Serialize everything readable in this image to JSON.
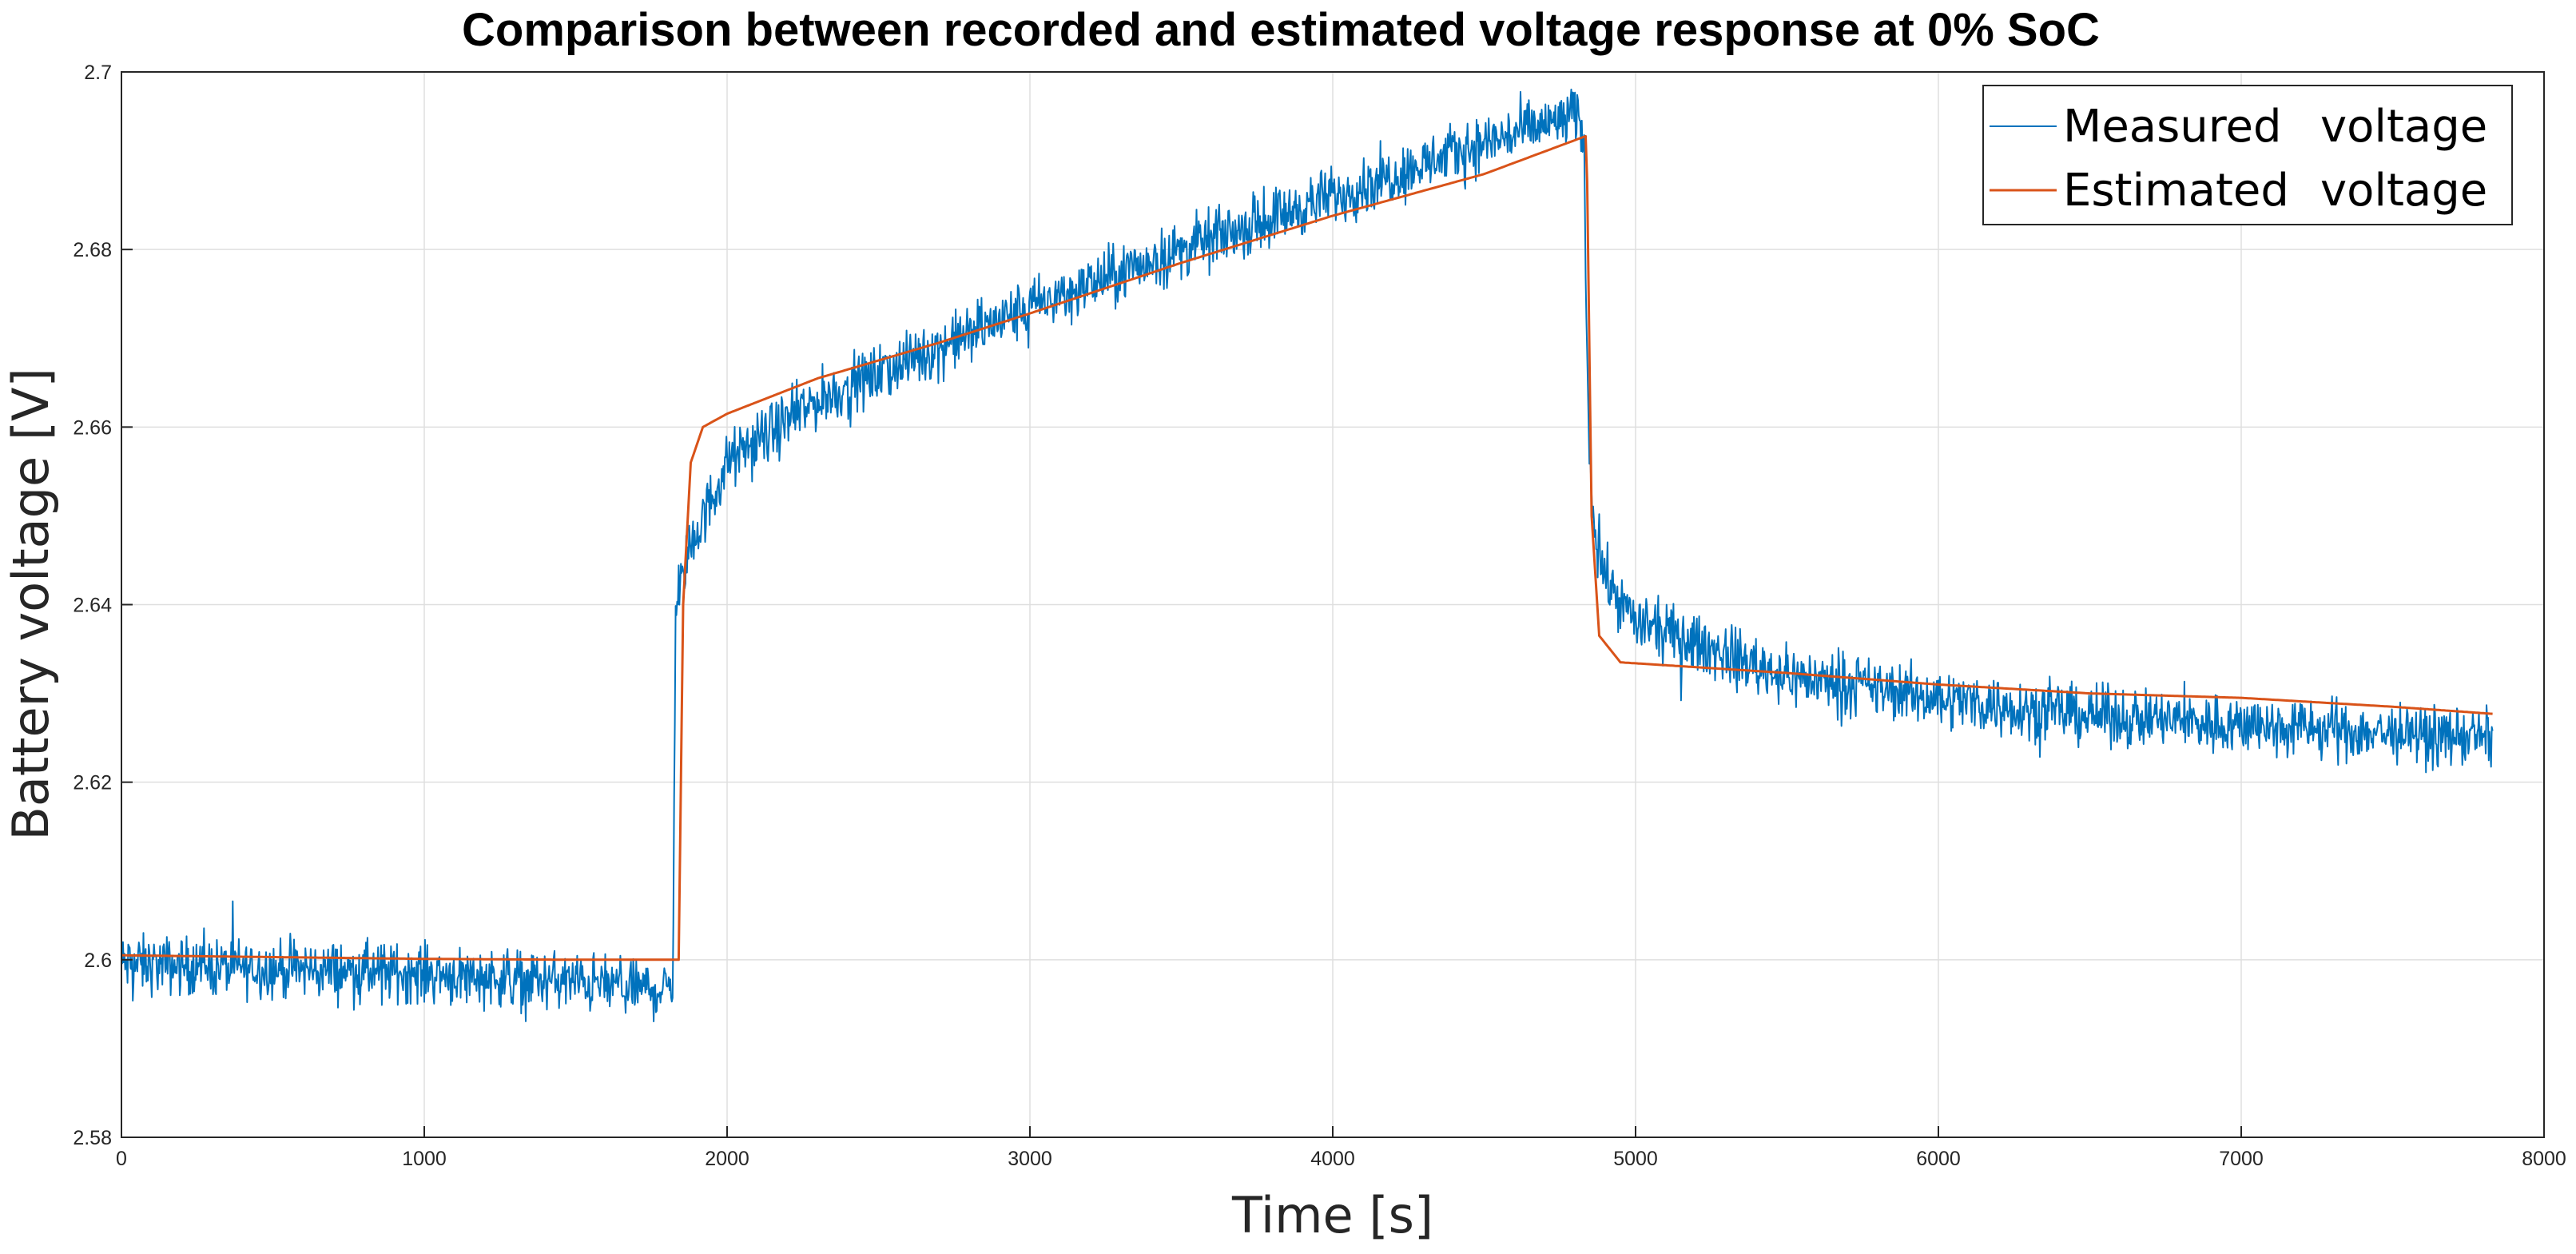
{
  "chart_data": {
    "type": "line",
    "title": "Comparison between recorded and estimated voltage response at 0% SoC",
    "xlabel": "Time [s]",
    "ylabel": "Battery voltage [V]",
    "xlim": [
      0,
      8000
    ],
    "ylim": [
      2.58,
      2.7
    ],
    "x_ticks": [
      0,
      1000,
      2000,
      3000,
      4000,
      5000,
      6000,
      7000,
      8000
    ],
    "x_tick_labels": [
      "0",
      "1000",
      "2000",
      "3000",
      "4000",
      "5000",
      "6000",
      "7000",
      "8000"
    ],
    "y_ticks": [
      2.58,
      2.6,
      2.62,
      2.64,
      2.66,
      2.68,
      2.7
    ],
    "y_tick_labels": [
      "2.58",
      "2.6",
      "2.62",
      "2.64",
      "2.66",
      "2.68",
      "2.7"
    ],
    "grid": true,
    "legend_position": "top-right",
    "series": [
      {
        "name": "Measured voltage",
        "legend_words": [
          "Measured",
          "voltage"
        ],
        "color": "#0072bd",
        "noise_amplitude": 0.0028,
        "x": [
          0,
          500,
          1000,
          1500,
          1820,
          1830,
          1850,
          1900,
          2000,
          2300,
          2700,
          3000,
          3500,
          4000,
          4500,
          4800,
          4830,
          4840,
          4860,
          4900,
          5000,
          5500,
          6000,
          6500,
          7000,
          7500,
          7830
        ],
        "values": [
          2.5995,
          2.599,
          2.5985,
          2.5975,
          2.5965,
          2.64,
          2.643,
          2.648,
          2.656,
          2.663,
          2.669,
          2.6735,
          2.68,
          2.686,
          2.692,
          2.695,
          2.693,
          2.665,
          2.65,
          2.643,
          2.638,
          2.632,
          2.6295,
          2.6275,
          2.6265,
          2.6255,
          2.625
        ]
      },
      {
        "name": "Estimated voltage",
        "legend_words": [
          "Estimated",
          "voltage"
        ],
        "color": "#d95319",
        "x": [
          0,
          500,
          1000,
          1500,
          1840,
          1855,
          1880,
          1920,
          2000,
          2300,
          2700,
          3000,
          3500,
          4000,
          4500,
          4838,
          4845,
          4855,
          4880,
          4950,
          5500,
          6000,
          6500,
          7000,
          7500,
          7830
        ],
        "values": [
          2.6005,
          2.6003,
          2.6001,
          2.6,
          2.6,
          2.64,
          2.656,
          2.66,
          2.6615,
          2.6655,
          2.6695,
          2.6728,
          2.6785,
          2.6838,
          2.6885,
          2.6928,
          2.675,
          2.65,
          2.6365,
          2.6335,
          2.6323,
          2.631,
          2.63,
          2.6295,
          2.6285,
          2.6277
        ]
      }
    ]
  }
}
